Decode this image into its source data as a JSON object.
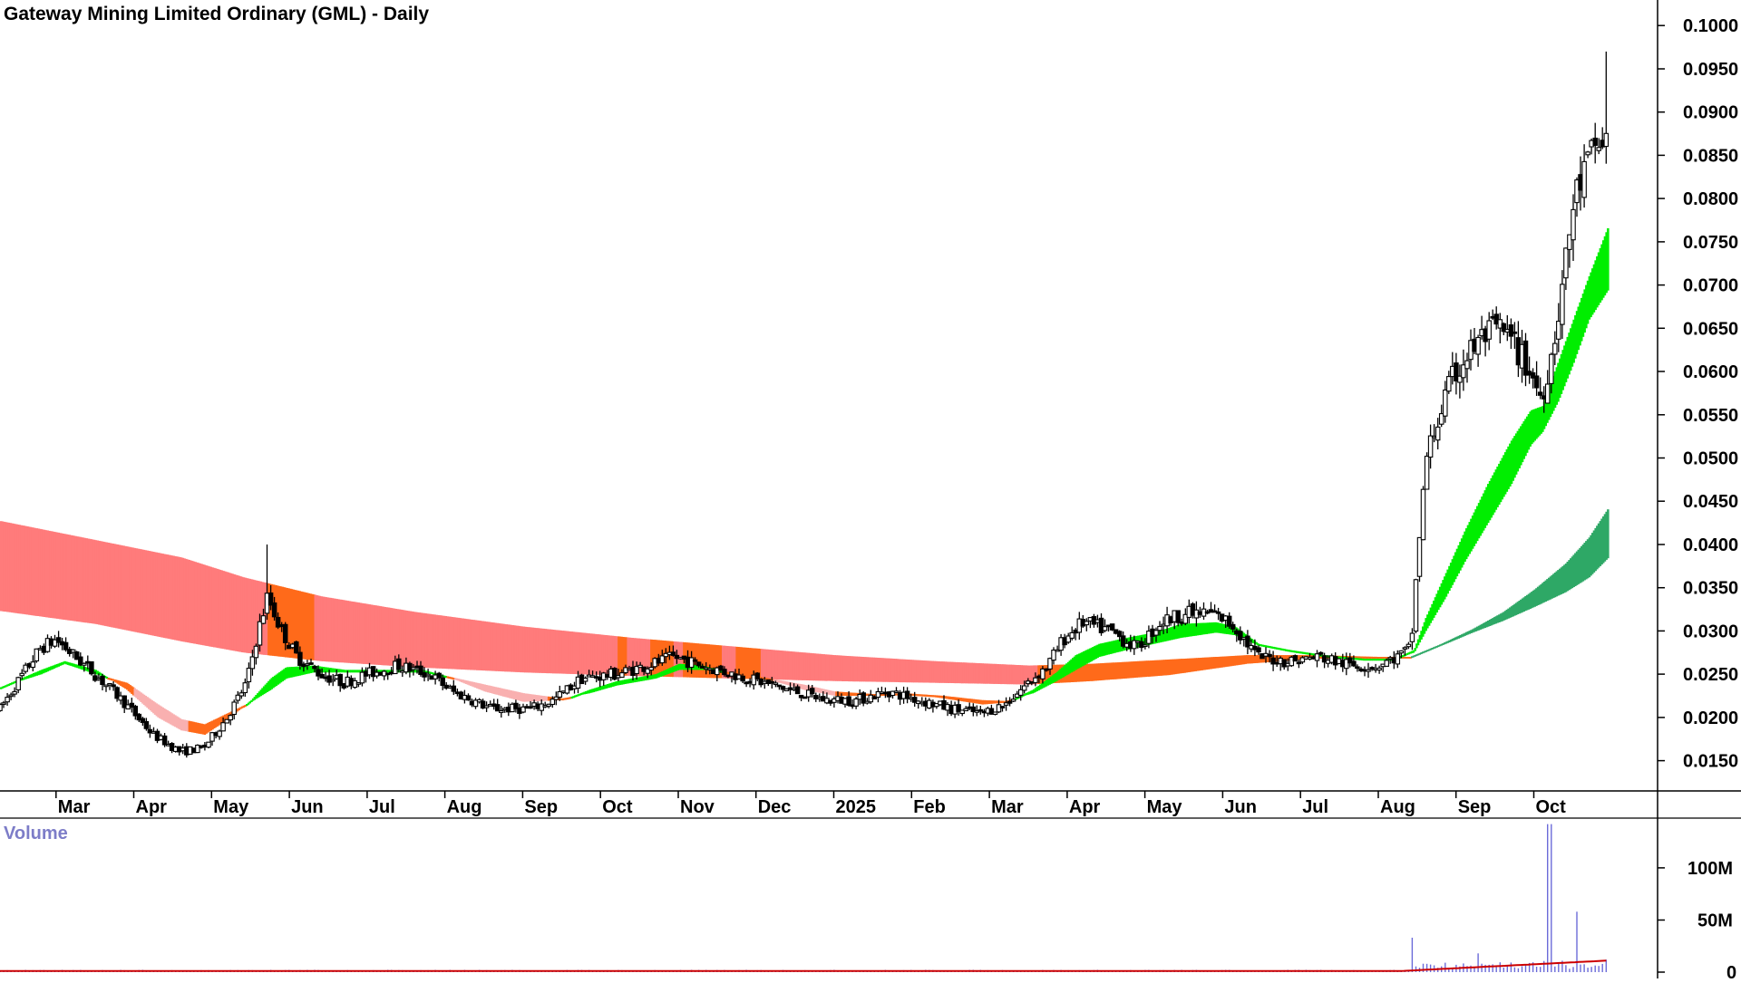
{
  "chart_data": {
    "type": "candlestick",
    "title": "Gateway Mining Limited Ordinary (GML) - Daily",
    "volume_title": "Volume",
    "x_tick_labels": [
      "Mar",
      "Apr",
      "May",
      "Jun",
      "Jul",
      "Aug",
      "Sep",
      "Oct",
      "Nov",
      "Dec",
      "2025",
      "Feb",
      "Mar",
      "Apr",
      "May",
      "Jun",
      "Jul",
      "Aug",
      "Sep",
      "Oct"
    ],
    "x_tick_month_index": [
      1,
      2,
      3,
      4,
      5,
      6,
      7,
      8,
      9,
      10,
      11,
      12,
      13,
      14,
      15,
      16,
      17,
      18,
      19,
      20
    ],
    "x_range_months": [
      0.28,
      20.95
    ],
    "y_tick_labels": [
      "0.1000",
      "0.0950",
      "0.0900",
      "0.0850",
      "0.0800",
      "0.0750",
      "0.0700",
      "0.0650",
      "0.0600",
      "0.0550",
      "0.0500",
      "0.0450",
      "0.0400",
      "0.0350",
      "0.0300",
      "0.0250",
      "0.0200",
      "0.0150"
    ],
    "y_ticks": [
      0.1,
      0.095,
      0.09,
      0.085,
      0.08,
      0.075,
      0.07,
      0.065,
      0.06,
      0.055,
      0.05,
      0.045,
      0.04,
      0.035,
      0.03,
      0.025,
      0.02,
      0.015
    ],
    "ylim": [
      0.0115,
      0.1017
    ],
    "volume_tick_labels": [
      "100M",
      "50M",
      "0"
    ],
    "volume_ticks": [
      100,
      50,
      0
    ],
    "volume_ylim": [
      0,
      146
    ],
    "volume_unit": "M",
    "price_path": [
      [
        0.28,
        0.021
      ],
      [
        0.5,
        0.024
      ],
      [
        0.8,
        0.028
      ],
      [
        1.0,
        0.029
      ],
      [
        1.25,
        0.027
      ],
      [
        1.5,
        0.025
      ],
      [
        1.85,
        0.022
      ],
      [
        2.25,
        0.018
      ],
      [
        2.6,
        0.016
      ],
      [
        2.9,
        0.0165
      ],
      [
        3.2,
        0.02
      ],
      [
        3.45,
        0.024
      ],
      [
        3.6,
        0.03
      ],
      [
        3.72,
        0.034
      ],
      [
        3.9,
        0.03
      ],
      [
        4.1,
        0.027
      ],
      [
        4.4,
        0.025
      ],
      [
        4.7,
        0.024
      ],
      [
        5.0,
        0.025
      ],
      [
        5.4,
        0.026
      ],
      [
        5.8,
        0.025
      ],
      [
        6.1,
        0.023
      ],
      [
        6.6,
        0.021
      ],
      [
        7.1,
        0.021
      ],
      [
        7.4,
        0.022
      ],
      [
        7.75,
        0.0245
      ],
      [
        8.2,
        0.025
      ],
      [
        8.6,
        0.026
      ],
      [
        8.95,
        0.027
      ],
      [
        9.3,
        0.026
      ],
      [
        9.7,
        0.025
      ],
      [
        10.1,
        0.024
      ],
      [
        10.5,
        0.023
      ],
      [
        10.9,
        0.022
      ],
      [
        11.3,
        0.022
      ],
      [
        11.7,
        0.023
      ],
      [
        12.1,
        0.022
      ],
      [
        12.5,
        0.021
      ],
      [
        12.9,
        0.0205
      ],
      [
        13.2,
        0.0215
      ],
      [
        13.5,
        0.024
      ],
      [
        13.75,
        0.026
      ],
      [
        13.95,
        0.029
      ],
      [
        14.2,
        0.031
      ],
      [
        14.55,
        0.03
      ],
      [
        14.9,
        0.028
      ],
      [
        15.2,
        0.031
      ],
      [
        15.5,
        0.032
      ],
      [
        15.9,
        0.032
      ],
      [
        16.15,
        0.0305
      ],
      [
        16.45,
        0.027
      ],
      [
        16.85,
        0.0265
      ],
      [
        17.25,
        0.027
      ],
      [
        17.65,
        0.026
      ],
      [
        18.0,
        0.026
      ],
      [
        18.25,
        0.027
      ],
      [
        18.42,
        0.028
      ],
      [
        18.52,
        0.04
      ],
      [
        18.62,
        0.05
      ],
      [
        18.75,
        0.054
      ],
      [
        18.95,
        0.059
      ],
      [
        19.15,
        0.062
      ],
      [
        19.35,
        0.064
      ],
      [
        19.55,
        0.065
      ],
      [
        19.75,
        0.063
      ],
      [
        19.95,
        0.06
      ],
      [
        20.1,
        0.057
      ],
      [
        20.25,
        0.063
      ],
      [
        20.4,
        0.072
      ],
      [
        20.52,
        0.08
      ],
      [
        20.65,
        0.083
      ],
      [
        20.8,
        0.086
      ],
      [
        20.95,
        0.087
      ]
    ],
    "annotated_points": {
      "last_price_high": 0.097,
      "spike_jun_high": 0.04
    },
    "volume_spikes": [
      [
        18.45,
        33
      ],
      [
        19.3,
        18
      ],
      [
        20.2,
        142
      ],
      [
        20.55,
        58
      ],
      [
        20.95,
        12
      ]
    ],
    "gmma_short_band": [
      [
        0.28,
        0.0235,
        0.0235
      ],
      [
        0.8,
        0.0255,
        0.025
      ],
      [
        1.1,
        0.0265,
        0.0262
      ],
      [
        1.5,
        0.0255,
        0.025
      ],
      [
        1.9,
        0.0232,
        0.024
      ],
      [
        2.3,
        0.02,
        0.0215
      ],
      [
        2.6,
        0.0185,
        0.0198
      ],
      [
        2.9,
        0.018,
        0.0192
      ],
      [
        3.2,
        0.0198,
        0.0205
      ],
      [
        3.5,
        0.022,
        0.0218
      ],
      [
        3.75,
        0.0245,
        0.0232
      ],
      [
        3.95,
        0.0258,
        0.0245
      ],
      [
        4.3,
        0.026,
        0.0252
      ],
      [
        4.7,
        0.0255,
        0.0252
      ],
      [
        5.2,
        0.0255,
        0.0252
      ],
      [
        5.7,
        0.0255,
        0.0252
      ],
      [
        6.0,
        0.0248,
        0.0248
      ],
      [
        6.5,
        0.023,
        0.0238
      ],
      [
        7.0,
        0.0218,
        0.0228
      ],
      [
        7.5,
        0.022,
        0.0222
      ],
      [
        7.85,
        0.0232,
        0.0228
      ],
      [
        8.2,
        0.0242,
        0.0237
      ],
      [
        8.7,
        0.025,
        0.0245
      ],
      [
        9.0,
        0.0262,
        0.0255
      ],
      [
        9.3,
        0.026,
        0.0255
      ],
      [
        9.7,
        0.025,
        0.0252
      ],
      [
        10.1,
        0.0245,
        0.0246
      ],
      [
        10.6,
        0.0232,
        0.0238
      ],
      [
        11.0,
        0.0225,
        0.023
      ],
      [
        11.5,
        0.0225,
        0.0227
      ],
      [
        11.9,
        0.0228,
        0.0228
      ],
      [
        12.4,
        0.0222,
        0.0225
      ],
      [
        12.9,
        0.0215,
        0.022
      ],
      [
        13.2,
        0.0217,
        0.0219
      ],
      [
        13.55,
        0.0232,
        0.0228
      ],
      [
        13.85,
        0.0252,
        0.0242
      ],
      [
        14.1,
        0.0272,
        0.0255
      ],
      [
        14.4,
        0.0285,
        0.027
      ],
      [
        14.75,
        0.0292,
        0.0278
      ],
      [
        15.1,
        0.0298,
        0.0285
      ],
      [
        15.45,
        0.0308,
        0.0292
      ],
      [
        15.9,
        0.031,
        0.0298
      ],
      [
        16.15,
        0.0305,
        0.0295
      ],
      [
        16.45,
        0.0285,
        0.0283
      ],
      [
        16.85,
        0.0278,
        0.0278
      ],
      [
        17.3,
        0.0272,
        0.0272
      ],
      [
        17.8,
        0.0268,
        0.0268
      ],
      [
        18.2,
        0.0268,
        0.0268
      ],
      [
        18.45,
        0.0278,
        0.0275
      ],
      [
        18.6,
        0.0315,
        0.03
      ],
      [
        18.85,
        0.0365,
        0.0338
      ],
      [
        19.1,
        0.0415,
        0.038
      ],
      [
        19.4,
        0.047,
        0.0425
      ],
      [
        19.7,
        0.052,
        0.047
      ],
      [
        19.95,
        0.0555,
        0.0515
      ],
      [
        20.1,
        0.056,
        0.053
      ],
      [
        20.3,
        0.061,
        0.0565
      ],
      [
        20.5,
        0.066,
        0.061
      ],
      [
        20.7,
        0.071,
        0.066
      ],
      [
        20.95,
        0.0768,
        0.0695
      ]
    ],
    "gmma_long_band": [
      [
        0.28,
        0.0427,
        0.0323
      ],
      [
        1.5,
        0.0405,
        0.0308
      ],
      [
        2.6,
        0.0385,
        0.0288
      ],
      [
        3.4,
        0.0362,
        0.0275
      ],
      [
        4.4,
        0.034,
        0.0265
      ],
      [
        5.6,
        0.0322,
        0.0258
      ],
      [
        7.0,
        0.0305,
        0.0252
      ],
      [
        8.4,
        0.0292,
        0.0248
      ],
      [
        9.7,
        0.0282,
        0.0245
      ],
      [
        11.0,
        0.0272,
        0.0242
      ],
      [
        12.3,
        0.0265,
        0.024
      ],
      [
        13.5,
        0.026,
        0.0238
      ],
      [
        14.3,
        0.0262,
        0.0242
      ],
      [
        15.3,
        0.0267,
        0.0249
      ],
      [
        16.3,
        0.0272,
        0.0262
      ],
      [
        17.2,
        0.0272,
        0.0268
      ],
      [
        18.0,
        0.027,
        0.0268
      ],
      [
        18.4,
        0.027,
        0.0268
      ],
      [
        18.8,
        0.0285,
        0.0283
      ],
      [
        19.2,
        0.0302,
        0.0298
      ],
      [
        19.6,
        0.0322,
        0.0312
      ],
      [
        20.0,
        0.0348,
        0.0328
      ],
      [
        20.4,
        0.0378,
        0.0345
      ],
      [
        20.7,
        0.0408,
        0.0362
      ],
      [
        20.95,
        0.0442,
        0.0385
      ]
    ],
    "colors": {
      "up_trend_short": "#00ee00",
      "down_trend_short": "#ff6a1a",
      "short_faded": "#f9b0b0",
      "long_down": "#ff7b7b",
      "long_cross": "#ff6a1a",
      "long_up": "#2ea866",
      "candle": "#000000",
      "volume_bar": "#6b6bd8",
      "volume_avg": "#cc0000",
      "axis": "#000000"
    }
  }
}
